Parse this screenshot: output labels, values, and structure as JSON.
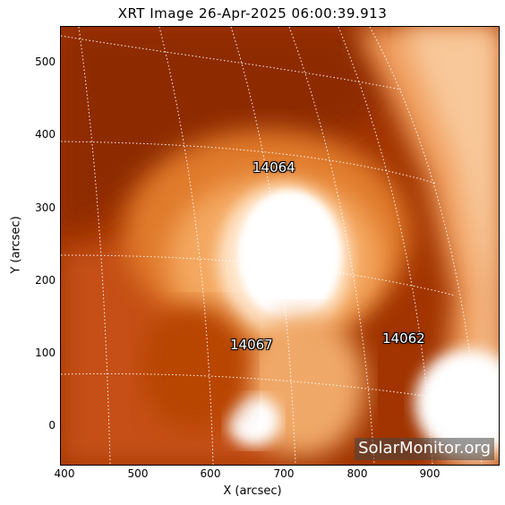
{
  "title": "XRT Image 26-Apr-2025 06:00:39.913",
  "x_axis": {
    "label": "X (arcsec)",
    "ticks": [
      "400",
      "500",
      "600",
      "700",
      "800",
      "900"
    ]
  },
  "y_axis": {
    "label": "Y (arcsec)",
    "ticks": [
      "500",
      "400",
      "300",
      "200",
      "100",
      "0"
    ]
  },
  "active_regions": [
    {
      "number": "14064"
    },
    {
      "number": "14067"
    },
    {
      "number": "14062"
    }
  ],
  "watermark": "SolarMonitor.org",
  "colors": {
    "dark_region": "#9a3000",
    "mid_region": "#d86a1a",
    "bright_region": "#ffffff",
    "grid": "#ffffff"
  }
}
